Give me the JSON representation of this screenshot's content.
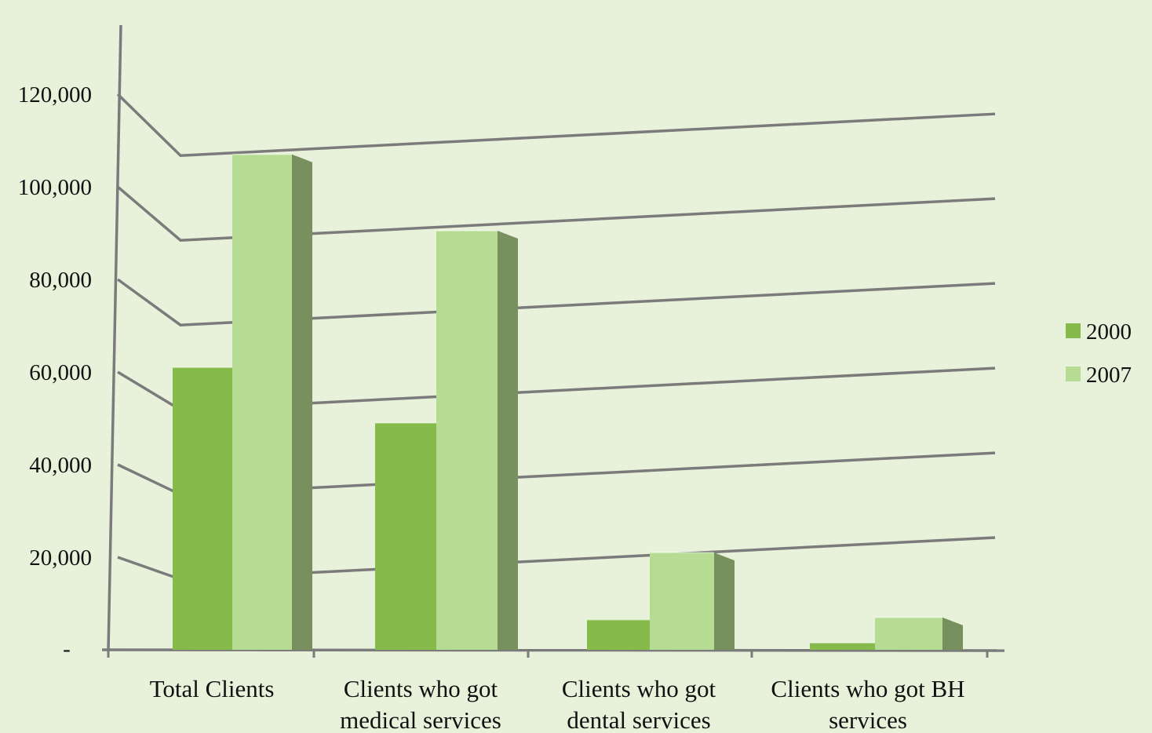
{
  "colors": {
    "background": "#e8f2da",
    "grid": "#7b7b7b",
    "series_2000_front": "#86bb4b",
    "series_2000_side": "#5f8c34",
    "series_2007_front": "#b5dc92",
    "series_2007_side": "#77905e"
  },
  "chart_data": {
    "type": "bar",
    "title": "",
    "xlabel": "",
    "ylabel": "",
    "categories": [
      [
        "Total Clients"
      ],
      [
        "Clients who got",
        "medical services"
      ],
      [
        "Clients who got",
        "dental services"
      ],
      [
        "Clients who got BH",
        "services"
      ]
    ],
    "series": [
      {
        "name": "2000",
        "values": [
          61000,
          49000,
          6500,
          1500
        ]
      },
      {
        "name": "2007",
        "values": [
          107000,
          90500,
          21000,
          7000
        ]
      }
    ],
    "ylim": [
      0,
      120000
    ],
    "yticks": [
      0,
      20000,
      40000,
      60000,
      80000,
      100000,
      120000
    ],
    "ytick_labels": [
      "-",
      "20,000",
      "40,000",
      "60,000",
      "80,000",
      "100,000",
      "120,000"
    ],
    "legend_position": "right",
    "grid": true,
    "style": "3d-clustered-column"
  }
}
